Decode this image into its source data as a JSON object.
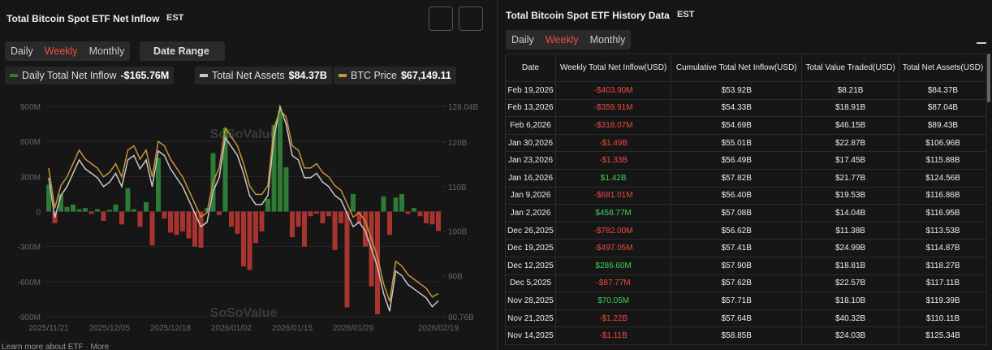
{
  "left_panel": {
    "title": "Total Bitcoin Spot ETF Net Inflow",
    "timezone": "EST",
    "tabs": [
      "Daily",
      "Weekly",
      "Monthly"
    ],
    "active_tab": 1,
    "date_range": "Date Range",
    "watermarks": [
      "SoSoValue",
      "SoSoValue"
    ],
    "footer": "Learn more about ETF · More"
  },
  "chart_data": {
    "type": "bar",
    "categories": [
      "2025/11/21",
      null,
      null,
      null,
      null,
      null,
      null,
      null,
      null,
      null,
      "2025/12/05",
      null,
      null,
      null,
      null,
      null,
      null,
      null,
      null,
      null,
      "2025/12/18",
      null,
      null,
      null,
      null,
      null,
      null,
      null,
      null,
      null,
      "2026/01/02",
      null,
      null,
      null,
      null,
      null,
      null,
      null,
      null,
      null,
      "2026/01/15",
      null,
      null,
      null,
      null,
      null,
      null,
      null,
      null,
      null,
      "2026/01/29",
      null,
      null,
      null,
      null,
      null,
      null,
      null,
      null,
      null,
      null,
      null,
      null,
      null,
      "2026/02/19"
    ],
    "series": [
      {
        "name": "Daily Total Net Inflow",
        "latest_label": "-$165.76M",
        "color": "#2f7a34",
        "negative_color": "#a8342f",
        "values": [
          230,
          -100,
          150,
          40,
          60,
          20,
          30,
          -20,
          20,
          -80,
          15,
          60,
          -110,
          200,
          20,
          -130,
          80,
          -290,
          460,
          -60,
          -180,
          -200,
          -170,
          -230,
          -300,
          -310,
          30,
          500,
          -30,
          715,
          -130,
          -190,
          -470,
          -500,
          -270,
          -170,
          110,
          740,
          860,
          380,
          -220,
          -130,
          -300,
          -40,
          -20,
          -100,
          -40,
          -330,
          -100,
          -820,
          150,
          -100,
          -300,
          -640,
          -880,
          130,
          -200,
          120,
          150,
          -20,
          30,
          -40,
          -100,
          -110,
          -165.76
        ]
      },
      {
        "name": "Total Net Assets",
        "latest_label": "$84.37B",
        "color": "#c8c8c8",
        "axis": "y2",
        "values": [
          112,
          103,
          108,
          110,
          113,
          116,
          114,
          113,
          112,
          110,
          111,
          113,
          110,
          116,
          117,
          114,
          116,
          110,
          118,
          117,
          114,
          112,
          110,
          107,
          104,
          101,
          102,
          109,
          112,
          121,
          119,
          117,
          113,
          108,
          106,
          106,
          108,
          121,
          128,
          124,
          117,
          116,
          112,
          112,
          113,
          111,
          110,
          108,
          107,
          104,
          101,
          102,
          100,
          96,
          92,
          86,
          82,
          91,
          90,
          88,
          87,
          86,
          85,
          83,
          84.37
        ]
      },
      {
        "name": "BTC Price",
        "latest_label": "$67,149.11",
        "color": "#c8923a",
        "axis": "y3",
        "values": [
          105950,
          93600,
          100500,
          103200,
          107300,
          111500,
          108700,
          107300,
          105950,
          103200,
          104600,
          107300,
          103200,
          111500,
          112800,
          108700,
          111500,
          103200,
          114200,
          112800,
          108700,
          105950,
          103200,
          99100,
          95000,
          90800,
          92200,
          101800,
          105950,
          118300,
          115600,
          112800,
          107300,
          100500,
          97800,
          97800,
          100500,
          118300,
          123900,
          121700,
          112800,
          111500,
          105950,
          105950,
          107300,
          104600,
          103200,
          100500,
          99100,
          95000,
          90800,
          92200,
          89500,
          84000,
          78500,
          70200,
          64700,
          77100,
          75700,
          73000,
          71600,
          70200,
          68800,
          66100,
          67149.11
        ]
      }
    ],
    "ylim": [
      -900,
      900
    ],
    "yticks": [
      {
        "value": 900,
        "label": "900M"
      },
      {
        "value": 600,
        "label": "600M"
      },
      {
        "value": 300,
        "label": "300M"
      },
      0,
      {
        "value": -300,
        "label": "-300M"
      },
      {
        "value": -600,
        "label": "-600M"
      },
      {
        "value": -900,
        "label": "-900M"
      }
    ],
    "y2lim": [
      80.76,
      128.04
    ],
    "y2ticks": [
      {
        "value": 128.04,
        "label": "128.04B"
      },
      {
        "value": 120,
        "label": "120B"
      },
      {
        "value": 110,
        "label": "110B"
      },
      {
        "value": 100,
        "label": "100B"
      },
      {
        "value": 90,
        "label": "90B"
      },
      {
        "value": 80.76,
        "label": "80.76B"
      }
    ],
    "y3lim": [
      60000,
      125000
    ]
  },
  "right_panel": {
    "title": "Total Bitcoin Spot ETF History Data",
    "timezone": "EST",
    "tabs": [
      "Daily",
      "Weekly",
      "Monthly"
    ],
    "active_tab": 1
  },
  "table": {
    "header": [
      "Date",
      "Weekly Total Net Inflow(USD)",
      "Cumulative Total Net Inflow(USD)",
      "Total Value Traded(USD)",
      "Total Net Assets(USD)"
    ],
    "rows": [
      [
        "Feb 19,2026",
        "-$403.90M",
        "$53.92B",
        "$8.21B",
        "$84.37B"
      ],
      [
        "Feb 13,2026",
        "-$359.91M",
        "$54.33B",
        "$18.91B",
        "$87.04B"
      ],
      [
        "Feb 6,2026",
        "-$318.07M",
        "$54.69B",
        "$46.15B",
        "$89.43B"
      ],
      [
        "Jan 30,2026",
        "-$1.49B",
        "$55.01B",
        "$22.87B",
        "$106.96B"
      ],
      [
        "Jan 23,2026",
        "-$1.33B",
        "$56.49B",
        "$17.45B",
        "$115.88B"
      ],
      [
        "Jan 16,2026",
        "$1.42B",
        "$57.82B",
        "$21.77B",
        "$124.56B"
      ],
      [
        "Jan 9,2026",
        "-$681.01M",
        "$56.40B",
        "$19.53B",
        "$116.86B"
      ],
      [
        "Jan 2,2026",
        "$458.77M",
        "$57.08B",
        "$14.04B",
        "$116.95B"
      ],
      [
        "Dec 26,2025",
        "-$782.00M",
        "$56.62B",
        "$11.38B",
        "$113.53B"
      ],
      [
        "Dec 19,2025",
        "-$497.05M",
        "$57.41B",
        "$24.99B",
        "$114.87B"
      ],
      [
        "Dec 12,2025",
        "$286.60M",
        "$57.90B",
        "$18.81B",
        "$118.27B"
      ],
      [
        "Dec 5,2025",
        "-$87.77M",
        "$57.62B",
        "$22.57B",
        "$117.11B"
      ],
      [
        "Nov 28,2025",
        "$70.05M",
        "$57.71B",
        "$18.10B",
        "$119.39B"
      ],
      [
        "Nov 21,2025",
        "-$1.22B",
        "$57.64B",
        "$40.32B",
        "$110.11B"
      ],
      [
        "Nov 14,2025",
        "-$1.11B",
        "$58.85B",
        "$24.03B",
        "$125.34B"
      ]
    ]
  }
}
